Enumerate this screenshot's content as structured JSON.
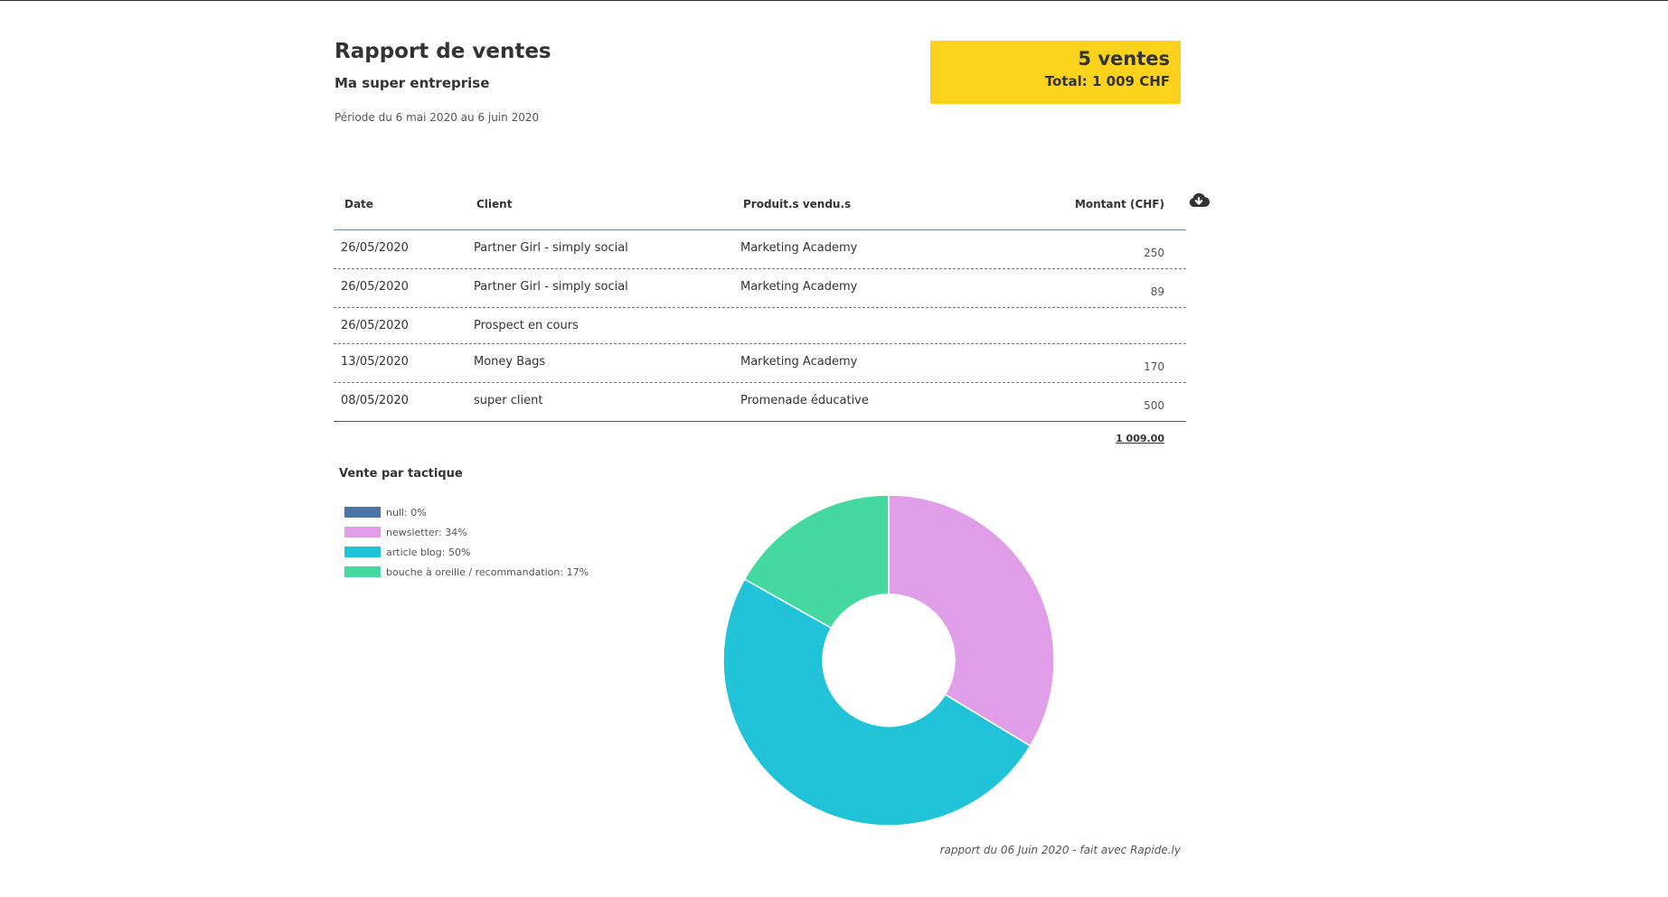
{
  "report": {
    "title": "Rapport de ventes",
    "company": "Ma super entreprise",
    "period": "Période du 6 mai 2020 au 6 juin 2020"
  },
  "summary": {
    "count_label": "5 ventes",
    "total_label": "Total: 1 009 CHF",
    "accent_color": "#fbd21c"
  },
  "table": {
    "headers": {
      "date": "Date",
      "client": "Client",
      "products": "Produit.s vendu.s",
      "amount": "Montant (CHF)"
    },
    "download_icon": "cloud-download-icon",
    "rows": [
      {
        "date": "26/05/2020",
        "client": "Partner Girl - simply social",
        "products": "Marketing Academy",
        "amount": "250"
      },
      {
        "date": "26/05/2020",
        "client": "Partner Girl - simply social",
        "products": "Marketing Academy",
        "amount": "89"
      },
      {
        "date": "26/05/2020",
        "client": "Prospect en cours",
        "products": "",
        "amount": ""
      },
      {
        "date": "13/05/2020",
        "client": "Money Bags",
        "products": "Marketing Academy",
        "amount": "170"
      },
      {
        "date": "08/05/2020",
        "client": "super client",
        "products": "Promenade éducative",
        "amount": "500"
      }
    ],
    "grand_total": "1 009.00"
  },
  "chart_section_title": "Vente par tactique",
  "chart_data": {
    "type": "pie",
    "donut": true,
    "legend_placement": "top-left",
    "categories": [
      "null: 0%",
      "newsletter: 34%",
      "article blog: 50%",
      "bouche à oreille / recommandation: 17%"
    ],
    "values": [
      0,
      34,
      50,
      17
    ],
    "colors": [
      "#4a73a8",
      "#e09ee9",
      "#20c3d7",
      "#45d8a1"
    ]
  },
  "footer": "rapport du 06 Juin 2020 - fait avec Rapide.ly"
}
